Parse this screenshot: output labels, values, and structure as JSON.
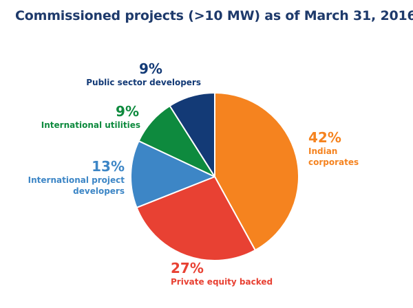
{
  "chart_data": {
    "type": "pie",
    "title": "Commissioned projects (>10 MW) as of March 31, 2016",
    "slices": [
      {
        "name": "Indian corporates",
        "value": 42,
        "label": "42%",
        "name_lines": [
          "Indian",
          "corporates"
        ],
        "color": "#f5831f"
      },
      {
        "name": "Private equity backed",
        "value": 27,
        "label": "27%",
        "name_lines": [
          "Private equity backed"
        ],
        "color": "#e84133"
      },
      {
        "name": "International project developers",
        "value": 13,
        "label": "13%",
        "name_lines": [
          "International project",
          "developers"
        ],
        "color": "#3d86c6"
      },
      {
        "name": "International utilities",
        "value": 9,
        "label": "9%",
        "name_lines": [
          "International utilities"
        ],
        "color": "#0e8a3e"
      },
      {
        "name": "Public sector developers",
        "value": 9,
        "label": "9%",
        "name_lines": [
          "Public sector developers"
        ],
        "color": "#133a76"
      }
    ],
    "start_angle_deg": 0,
    "direction": "clockwise"
  },
  "colors": {
    "title": "#1e3a6b",
    "slice_border": "#ffffff"
  }
}
